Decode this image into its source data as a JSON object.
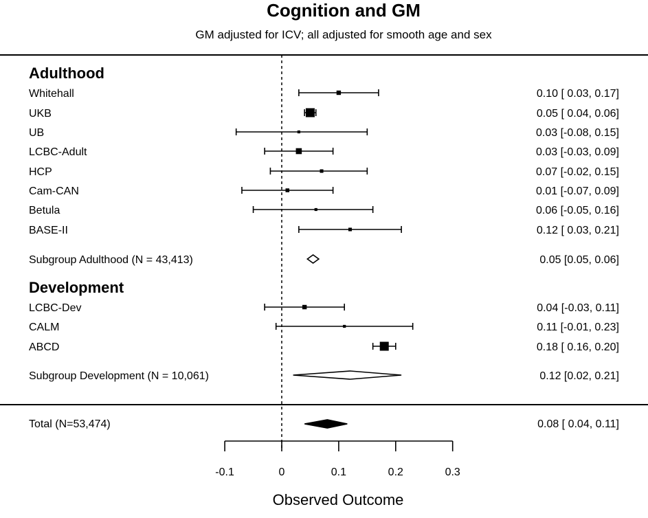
{
  "chart_data": {
    "type": "forest",
    "title": "Cognition and GM",
    "subtitle": "GM adjusted for ICV; all adjusted for smooth age and sex",
    "xlabel": "Observed Outcome",
    "xlim": [
      -0.1,
      0.3
    ],
    "xticks": [
      "-0.1",
      "0",
      "0.1",
      "0.2",
      "0.3"
    ],
    "reference_line": 0,
    "groups": [
      {
        "name": "Adulthood",
        "studies": [
          {
            "label": "Whitehall",
            "est": 0.1,
            "lo": 0.03,
            "hi": 0.17,
            "weight": 2,
            "text": "0.10 [ 0.03, 0.17]"
          },
          {
            "label": "UKB",
            "est": 0.05,
            "lo": 0.04,
            "hi": 0.06,
            "weight": 5,
            "text": "0.05 [ 0.04, 0.06]"
          },
          {
            "label": "UB",
            "est": 0.03,
            "lo": -0.08,
            "hi": 0.15,
            "weight": 1,
            "text": "0.03 [-0.08, 0.15]"
          },
          {
            "label": "LCBC-Adult",
            "est": 0.03,
            "lo": -0.03,
            "hi": 0.09,
            "weight": 3,
            "text": "0.03 [-0.03, 0.09]"
          },
          {
            "label": "HCP",
            "est": 0.07,
            "lo": -0.02,
            "hi": 0.15,
            "weight": 1.4,
            "text": "0.07 [-0.02, 0.15]"
          },
          {
            "label": "Cam-CAN",
            "est": 0.01,
            "lo": -0.07,
            "hi": 0.09,
            "weight": 1.6,
            "text": "0.01 [-0.07, 0.09]"
          },
          {
            "label": "Betula",
            "est": 0.06,
            "lo": -0.05,
            "hi": 0.16,
            "weight": 1,
            "text": "0.06 [-0.05, 0.16]"
          },
          {
            "label": "BASE-II",
            "est": 0.12,
            "lo": 0.03,
            "hi": 0.21,
            "weight": 1.4,
            "text": "0.12 [ 0.03, 0.21]"
          }
        ],
        "subgroup": {
          "label": "Subgroup Adulthood (N = 43,413)",
          "est": 0.055,
          "lo": 0.045,
          "hi": 0.065,
          "text": "0.05 [0.05, 0.06]"
        }
      },
      {
        "name": "Development",
        "studies": [
          {
            "label": "LCBC-Dev",
            "est": 0.04,
            "lo": -0.03,
            "hi": 0.11,
            "weight": 2,
            "text": "0.04 [-0.03, 0.11]"
          },
          {
            "label": "CALM",
            "est": 0.11,
            "lo": -0.01,
            "hi": 0.23,
            "weight": 1,
            "text": "0.11 [-0.01, 0.23]"
          },
          {
            "label": "ABCD",
            "est": 0.18,
            "lo": 0.16,
            "hi": 0.2,
            "weight": 5,
            "text": "0.18 [ 0.16, 0.20]"
          }
        ],
        "subgroup": {
          "label": "Subgroup Development (N = 10,061)",
          "est": 0.12,
          "lo": 0.02,
          "hi": 0.21,
          "text": "0.12 [0.02, 0.21]"
        }
      }
    ],
    "total": {
      "label": "Total (N=53,474)",
      "est": 0.08,
      "lo": 0.04,
      "hi": 0.115,
      "text": "0.08 [ 0.04, 0.11]"
    }
  }
}
